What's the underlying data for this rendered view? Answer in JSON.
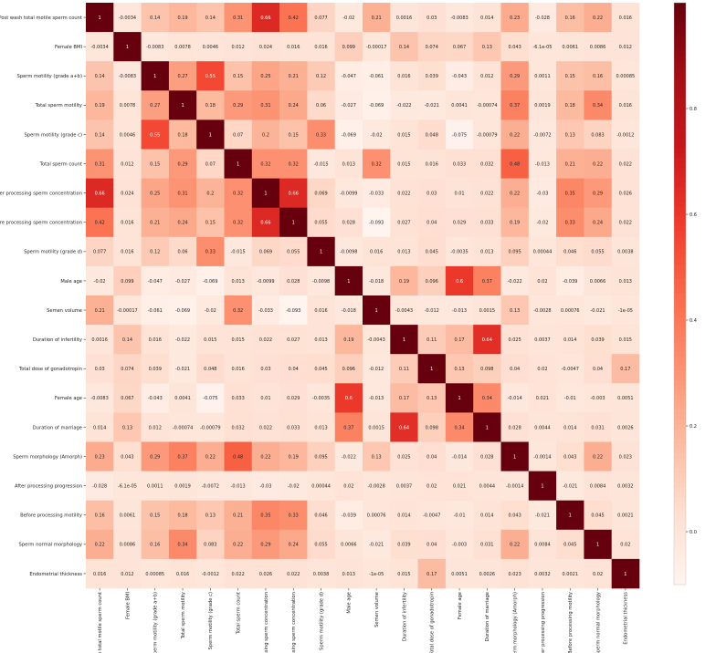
{
  "chart_data": {
    "type": "heatmap",
    "title": "",
    "xlabel": "",
    "ylabel": "",
    "labels": [
      "Post wash total motile sperm count",
      "Female BMI",
      "Sperm motility (grade a+b)",
      "Total sperm motility",
      "Sperm motility (grade c)",
      "Total sperm count",
      "After processing sperm concentration",
      "Before processing sperm concentration",
      "Sperm motility (grade d)",
      "Male age",
      "Semen volume",
      "Duration of infertility",
      "Total dose of gonadotropin",
      "Female age",
      "Duration of marriage",
      "Sperm morphology  (Amorph)",
      "After processing progression",
      "Before processing motility",
      "Sperm normal morphology",
      "Endometrial thickness"
    ],
    "matrix": [
      [
        "1",
        "-0.0034",
        "0.14",
        "0.19",
        "0.14",
        "0.31",
        "0.66",
        "0.42",
        "0.077",
        "-0.02",
        "0.21",
        "0.0016",
        "0.03",
        "-0.0083",
        "0.014",
        "0.23",
        "-0.028",
        "0.16",
        "0.22",
        "0.016"
      ],
      [
        "-0.0034",
        "1",
        "-0.0083",
        "0.0078",
        "0.0046",
        "0.012",
        "0.024",
        "0.016",
        "0.016",
        "0.099",
        "-0.00017",
        "0.14",
        "0.074",
        "0.067",
        "0.13",
        "0.043",
        "-6.1e-05",
        "0.0061",
        "0.0086",
        "0.012"
      ],
      [
        "0.14",
        "-0.0083",
        "1",
        "0.27",
        "0.55",
        "0.15",
        "0.25",
        "0.21",
        "0.12",
        "-0.047",
        "-0.061",
        "0.016",
        "0.039",
        "-0.043",
        "0.012",
        "0.29",
        "0.0011",
        "0.15",
        "0.16",
        "0.00085"
      ],
      [
        "0.19",
        "0.0078",
        "0.27",
        "1",
        "0.18",
        "0.29",
        "0.31",
        "0.24",
        "0.06",
        "-0.027",
        "-0.069",
        "-0.022",
        "-0.021",
        "0.0041",
        "-0.00074",
        "0.37",
        "0.0019",
        "0.18",
        "0.34",
        "0.016"
      ],
      [
        "0.14",
        "0.0046",
        "0.55",
        "0.18",
        "1",
        "0.07",
        "0.2",
        "0.15",
        "0.33",
        "-0.069",
        "-0.02",
        "0.015",
        "0.048",
        "-0.075",
        "-0.00079",
        "0.22",
        "-0.0072",
        "0.13",
        "0.083",
        "-0.0012"
      ],
      [
        "0.31",
        "0.012",
        "0.15",
        "0.29",
        "0.07",
        "1",
        "0.32",
        "0.32",
        "-0.015",
        "0.013",
        "0.32",
        "0.015",
        "0.016",
        "0.033",
        "0.032",
        "0.48",
        "-0.013",
        "0.21",
        "0.22",
        "0.022"
      ],
      [
        "0.66",
        "0.024",
        "0.25",
        "0.31",
        "0.2",
        "0.32",
        "1",
        "0.66",
        "0.069",
        "-0.0099",
        "-0.033",
        "0.022",
        "0.03",
        "0.01",
        "0.022",
        "0.22",
        "-0.03",
        "0.35",
        "0.29",
        "0.026"
      ],
      [
        "0.42",
        "0.016",
        "0.21",
        "0.24",
        "0.15",
        "0.32",
        "0.66",
        "1",
        "0.055",
        "0.028",
        "-0.093",
        "0.027",
        "0.04",
        "0.029",
        "0.033",
        "0.19",
        "-0.02",
        "0.33",
        "0.24",
        "0.022"
      ],
      [
        "0.077",
        "0.016",
        "0.12",
        "0.06",
        "0.33",
        "-0.015",
        "0.069",
        "0.055",
        "1",
        "-0.0098",
        "0.016",
        "0.013",
        "0.045",
        "-0.0035",
        "0.013",
        "0.095",
        "0.00044",
        "0.046",
        "0.055",
        "0.0038"
      ],
      [
        "-0.02",
        "0.099",
        "-0.047",
        "-0.027",
        "-0.069",
        "0.013",
        "-0.0099",
        "0.028",
        "-0.0098",
        "1",
        "-0.018",
        "0.19",
        "0.096",
        "0.6",
        "0.37",
        "-0.022",
        "0.02",
        "-0.039",
        "0.0066",
        "0.013"
      ],
      [
        "0.21",
        "-0.00017",
        "-0.061",
        "-0.069",
        "-0.02",
        "0.32",
        "-0.033",
        "-0.093",
        "0.016",
        "-0.018",
        "1",
        "-0.0043",
        "-0.012",
        "-0.013",
        "0.0015",
        "0.13",
        "-0.0028",
        "0.00076",
        "-0.021",
        "-1e-05"
      ],
      [
        "0.0016",
        "0.14",
        "0.016",
        "-0.022",
        "0.015",
        "0.015",
        "0.022",
        "0.027",
        "0.013",
        "0.19",
        "-0.0043",
        "1",
        "0.11",
        "0.17",
        "0.64",
        "0.025",
        "0.0037",
        "0.014",
        "0.039",
        "0.015"
      ],
      [
        "0.03",
        "0.074",
        "0.039",
        "-0.021",
        "0.048",
        "0.016",
        "0.03",
        "0.04",
        "0.045",
        "0.096",
        "-0.012",
        "0.11",
        "1",
        "0.13",
        "0.098",
        "0.04",
        "0.02",
        "-0.0047",
        "0.04",
        "0.17"
      ],
      [
        "-0.0083",
        "0.067",
        "-0.043",
        "0.0041",
        "-0.075",
        "0.033",
        "0.01",
        "0.029",
        "-0.0035",
        "0.6",
        "-0.013",
        "0.17",
        "0.13",
        "1",
        "0.34",
        "-0.014",
        "0.021",
        "-0.01",
        "-0.003",
        "0.0051"
      ],
      [
        "0.014",
        "0.13",
        "0.012",
        "-0.00074",
        "-0.00079",
        "0.032",
        "0.022",
        "0.033",
        "0.013",
        "0.37",
        "0.0015",
        "0.64",
        "0.098",
        "0.34",
        "1",
        "0.028",
        "0.0044",
        "0.014",
        "0.031",
        "0.0026"
      ],
      [
        "0.23",
        "0.043",
        "0.29",
        "0.37",
        "0.22",
        "0.48",
        "0.22",
        "0.19",
        "0.095",
        "-0.022",
        "0.13",
        "0.025",
        "0.04",
        "-0.014",
        "0.028",
        "1",
        "-0.0014",
        "0.043",
        "0.22",
        "0.023"
      ],
      [
        "-0.028",
        "-6.1e-05",
        "0.0011",
        "0.0019",
        "-0.0072",
        "-0.013",
        "-0.03",
        "-0.02",
        "0.00044",
        "0.02",
        "-0.0028",
        "0.0037",
        "0.02",
        "0.021",
        "0.0044",
        "-0.0014",
        "1",
        "-0.021",
        "0.0084",
        "0.0032"
      ],
      [
        "0.16",
        "0.0061",
        "0.15",
        "0.18",
        "0.13",
        "0.21",
        "0.35",
        "0.33",
        "0.046",
        "-0.039",
        "0.00076",
        "0.014",
        "-0.0047",
        "-0.01",
        "0.014",
        "0.043",
        "-0.021",
        "1",
        "0.045",
        "0.0021"
      ],
      [
        "0.22",
        "0.0086",
        "0.16",
        "0.34",
        "0.083",
        "0.22",
        "0.29",
        "0.24",
        "0.055",
        "0.0066",
        "-0.021",
        "0.039",
        "0.04",
        "-0.003",
        "0.031",
        "0.22",
        "0.0084",
        "0.045",
        "1",
        "0.02"
      ],
      [
        "0.016",
        "0.012",
        "0.00085",
        "0.016",
        "-0.0012",
        "0.022",
        "0.026",
        "0.022",
        "0.0038",
        "0.013",
        "-1e-05",
        "0.015",
        "0.17",
        "0.0051",
        "0.0026",
        "0.023",
        "0.0032",
        "0.0021",
        "0.02",
        "1"
      ]
    ],
    "colorbar": {
      "min": -0.1,
      "max": 1.0,
      "ticks": [
        "0.0",
        "0.2",
        "0.4",
        "0.6",
        "0.8"
      ],
      "colormap": "Reds",
      "color_low": "#fff5f0",
      "color_high": "#67000d"
    }
  }
}
